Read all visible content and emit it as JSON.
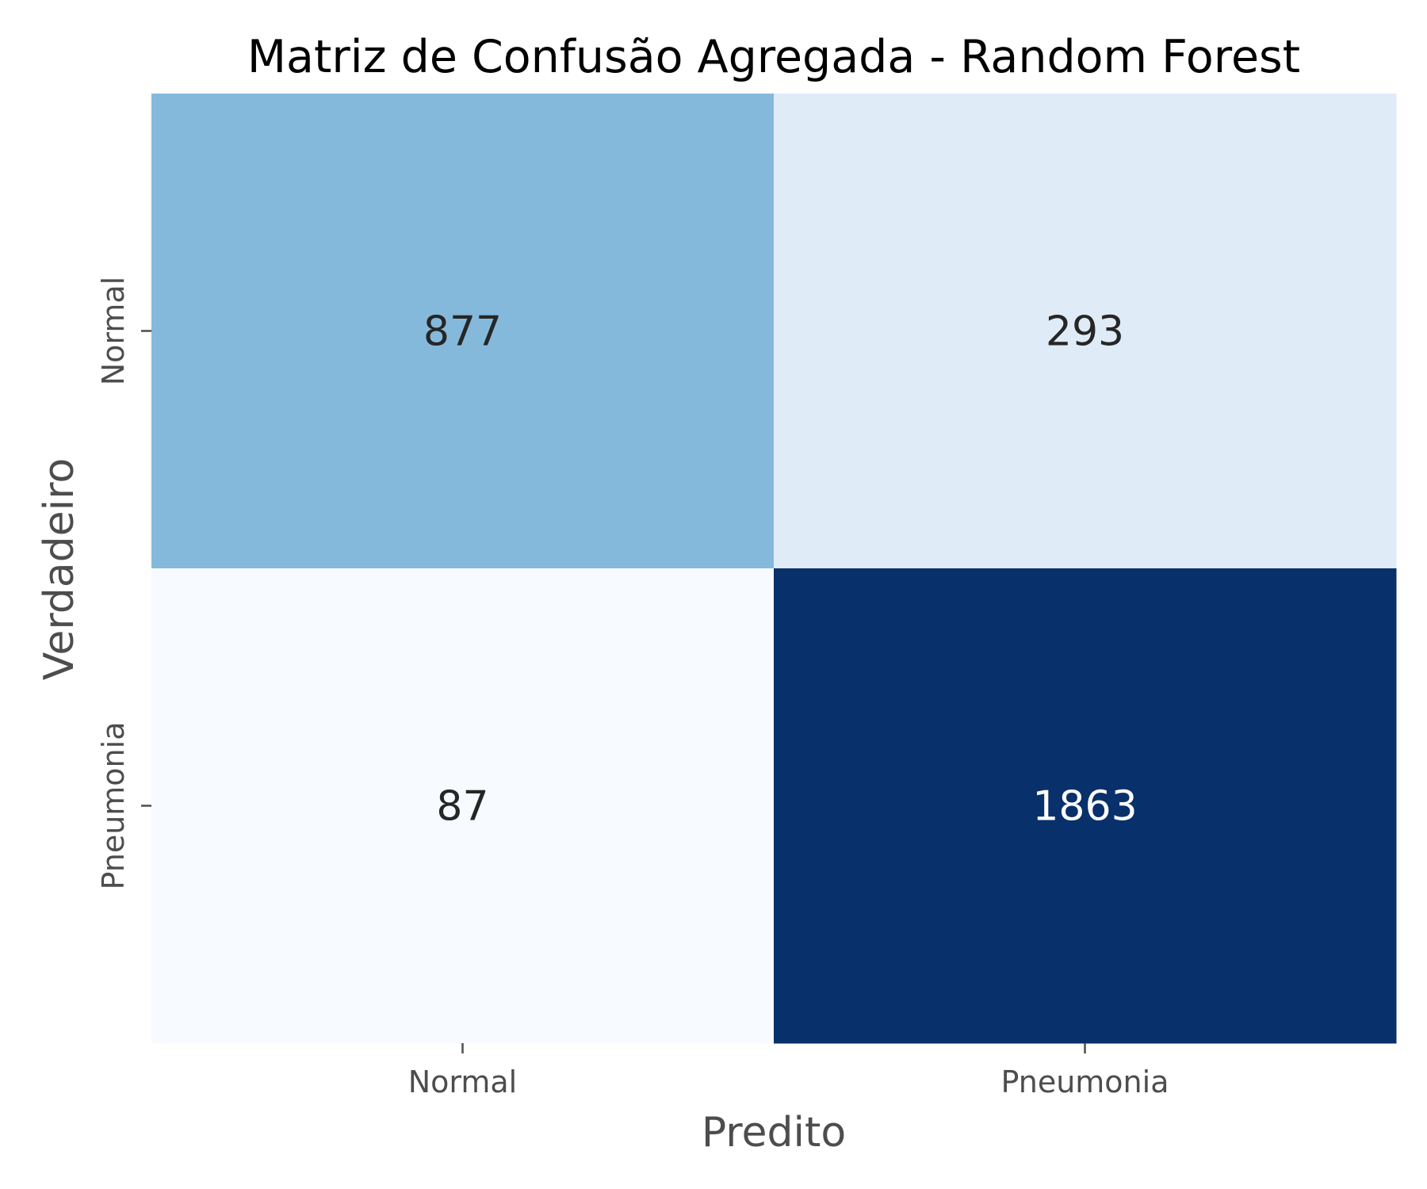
{
  "chart_data": {
    "type": "heatmap",
    "title": "Matriz de Confusão Agregada - Random Forest",
    "xlabel": "Predito",
    "ylabel": "Verdadeiro",
    "x_categories": [
      "Normal",
      "Pneumonia"
    ],
    "y_categories": [
      "Normal",
      "Pneumonia"
    ],
    "values": [
      [
        877,
        293
      ],
      [
        87,
        1863
      ]
    ],
    "colormap": "Blues",
    "colorbar": false,
    "cell_colors": [
      [
        "#85b9db",
        "#dfebf7"
      ],
      [
        "#f7fbff",
        "#08306b"
      ]
    ],
    "annotation_colors": [
      [
        "#262626",
        "#262626"
      ],
      [
        "#262626",
        "#ffffff"
      ]
    ]
  }
}
